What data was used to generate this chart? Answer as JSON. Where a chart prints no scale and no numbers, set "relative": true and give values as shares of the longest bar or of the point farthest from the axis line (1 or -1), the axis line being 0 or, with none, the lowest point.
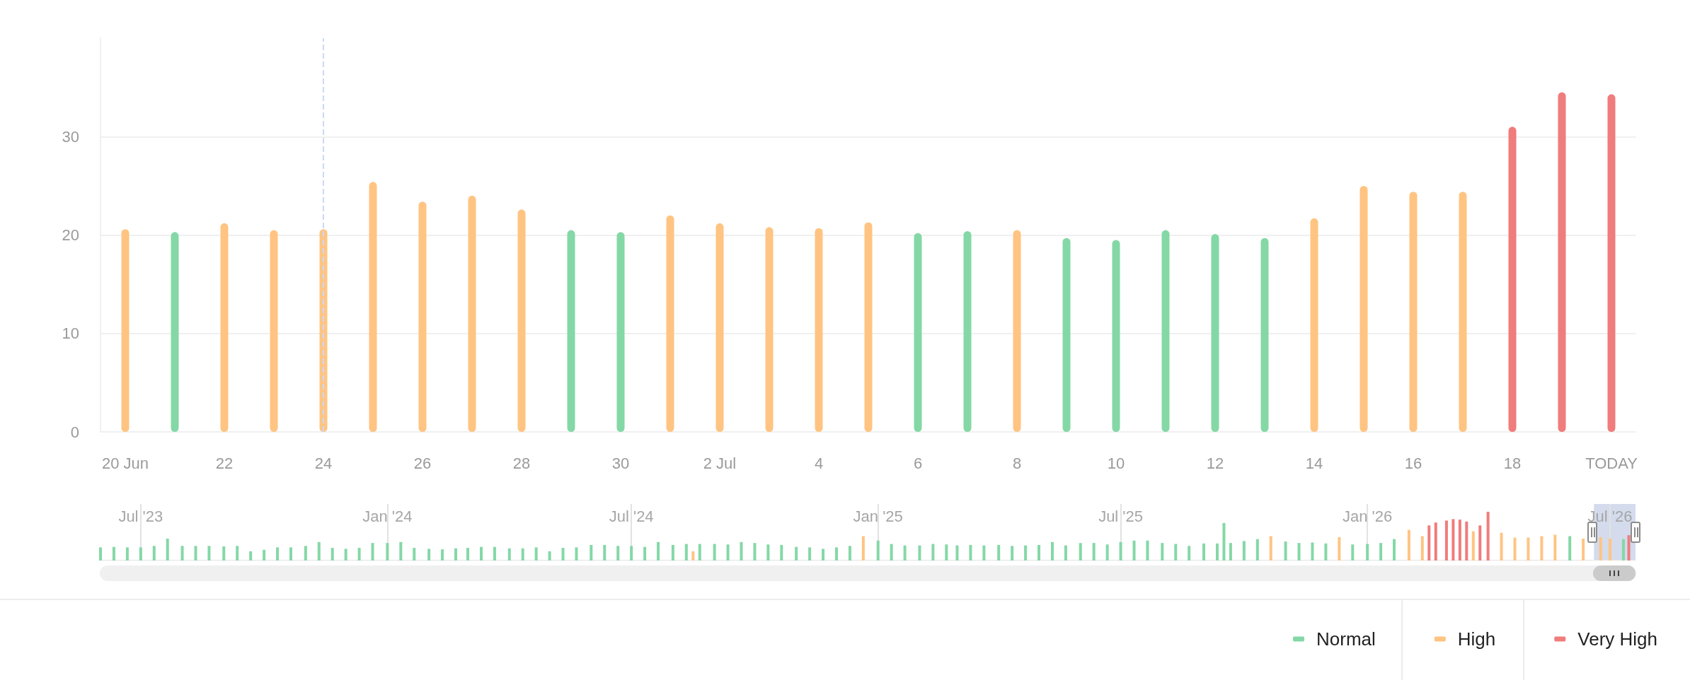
{
  "chart_data": [
    {
      "type": "bar",
      "categories": [
        "20 Jun",
        null,
        "22",
        null,
        "24",
        null,
        "26",
        null,
        "28",
        null,
        "30",
        null,
        "2 Jul",
        null,
        "4",
        null,
        "6",
        null,
        "8",
        null,
        "10",
        null,
        "12",
        null,
        "14",
        null,
        "16",
        null,
        "18",
        null,
        "TODAY"
      ],
      "series": [
        {
          "name": "Normal",
          "color": "#84d8a6",
          "values": [
            null,
            20.3,
            null,
            null,
            null,
            null,
            null,
            null,
            null,
            20.5,
            20.3,
            null,
            null,
            null,
            null,
            null,
            20.2,
            20.4,
            null,
            19.7,
            19.5,
            20.5,
            20.1,
            19.7,
            null,
            null,
            null,
            null,
            null,
            null,
            null
          ]
        },
        {
          "name": "High",
          "color": "#ffc482",
          "values": [
            20.6,
            null,
            21.2,
            20.5,
            20.6,
            25.4,
            23.4,
            24.0,
            22.6,
            null,
            null,
            22.0,
            21.2,
            20.8,
            20.7,
            21.3,
            null,
            null,
            20.5,
            null,
            null,
            null,
            null,
            null,
            21.7,
            25.0,
            24.4,
            24.4,
            null,
            null,
            null
          ]
        },
        {
          "name": "Very High",
          "color": "#f07c7c",
          "values": [
            null,
            null,
            null,
            null,
            null,
            null,
            null,
            null,
            null,
            null,
            null,
            null,
            null,
            null,
            null,
            null,
            null,
            null,
            null,
            null,
            null,
            null,
            null,
            null,
            null,
            null,
            null,
            null,
            31.0,
            34.5,
            34.3
          ]
        }
      ],
      "stacked": true,
      "ylim": [
        0,
        40
      ],
      "yticks": [
        0,
        10,
        20,
        30
      ],
      "grid": "y",
      "legend": "bottom right",
      "ref_lines": [
        {
          "axis": "x",
          "value": "24",
          "color": "#c6dafb",
          "line_style": "dashed"
        }
      ]
    },
    {
      "type": "bar",
      "relative": true,
      "tick_labels": "x",
      "grid": "x",
      "xlim": [
        "2023-06-01",
        "2026-07-20"
      ],
      "xticks": [
        {
          "value": "2023-07-01",
          "label": "Jul '23"
        },
        {
          "value": "2024-01-01",
          "label": "Jan '24"
        },
        {
          "value": "2024-07-01",
          "label": "Jul '24"
        },
        {
          "value": "2025-01-01",
          "label": "Jan '25"
        },
        {
          "value": "2025-07-01",
          "label": "Jul '25"
        },
        {
          "value": "2026-01-01",
          "label": "Jan '26"
        },
        {
          "value": "2026-07-01",
          "label": "Jul '26"
        }
      ],
      "bands": [
        {
          "axis": "x",
          "from": "2026-06-19",
          "to": "2026-07-20",
          "color": "#d3dbec"
        }
      ],
      "series": [
        {
          "color": "#84d8a6",
          "x": [
            "2023-06-01",
            "2023-06-11",
            "2023-06-21",
            "2023-07-01",
            "2023-07-11",
            "2023-07-21",
            "2023-08-01",
            "2023-08-11",
            "2023-08-21",
            "2023-09-01",
            "2023-09-11",
            "2023-09-21",
            "2023-10-01",
            "2023-10-11",
            "2023-10-21",
            "2023-11-01",
            "2023-11-11",
            "2023-11-21",
            "2023-12-01",
            "2023-12-11",
            "2023-12-21",
            "2024-01-01",
            "2024-01-11",
            "2024-01-21",
            "2024-02-01",
            "2024-02-11",
            "2024-02-21",
            "2024-03-01",
            "2024-03-11",
            "2024-03-21",
            "2024-04-01",
            "2024-04-11",
            "2024-04-21",
            "2024-05-01",
            "2024-05-11",
            "2024-05-21",
            "2024-06-01",
            "2024-06-11",
            "2024-06-21",
            "2024-07-01",
            "2024-07-11",
            "2024-07-21",
            "2024-08-01",
            "2024-08-11",
            "2024-08-21",
            "2024-09-01",
            "2024-09-11",
            "2024-09-21",
            "2024-10-01",
            "2024-10-11",
            "2024-10-21",
            "2024-11-01",
            "2024-11-11",
            "2024-11-21",
            "2024-12-01",
            "2024-12-11",
            "2025-01-01",
            "2025-01-11",
            "2025-01-21",
            "2025-02-01",
            "2025-02-11",
            "2025-02-21",
            "2025-03-01",
            "2025-03-11",
            "2025-03-21",
            "2025-04-01",
            "2025-04-11",
            "2025-04-21",
            "2025-05-01",
            "2025-05-11",
            "2025-05-21",
            "2025-06-01",
            "2025-06-11",
            "2025-06-21",
            "2025-07-01",
            "2025-07-11",
            "2025-07-21",
            "2025-08-01",
            "2025-08-11",
            "2025-08-21",
            "2025-09-01",
            "2025-09-11",
            "2025-09-16",
            "2025-09-21",
            "2025-10-01",
            "2025-10-11",
            "2025-11-01",
            "2025-11-11",
            "2025-11-21",
            "2025-12-01",
            "2025-12-21",
            "2026-01-01",
            "2026-01-11",
            "2026-01-21",
            "2026-06-01",
            "2026-07-11"
          ],
          "values": [
            0.27,
            0.28,
            0.27,
            0.27,
            0.3,
            0.45,
            0.3,
            0.3,
            0.3,
            0.29,
            0.3,
            0.19,
            0.22,
            0.27,
            0.27,
            0.3,
            0.38,
            0.26,
            0.24,
            0.26,
            0.36,
            0.36,
            0.38,
            0.26,
            0.24,
            0.23,
            0.25,
            0.26,
            0.28,
            0.28,
            0.25,
            0.25,
            0.27,
            0.19,
            0.26,
            0.27,
            0.32,
            0.32,
            0.3,
            0.3,
            0.28,
            0.38,
            0.32,
            0.34,
            0.34,
            0.34,
            0.33,
            0.38,
            0.36,
            0.33,
            0.32,
            0.28,
            0.27,
            0.24,
            0.27,
            0.3,
            0.41,
            0.34,
            0.31,
            0.31,
            0.34,
            0.33,
            0.31,
            0.32,
            0.31,
            0.32,
            0.3,
            0.31,
            0.32,
            0.38,
            0.31,
            0.36,
            0.36,
            0.33,
            0.38,
            0.41,
            0.41,
            0.36,
            0.34,
            0.3,
            0.35,
            0.35,
            0.77,
            0.36,
            0.4,
            0.44,
            0.39,
            0.36,
            0.37,
            0.35,
            0.33,
            0.34,
            0.36,
            0.44,
            0.5,
            0.44
          ]
        },
        {
          "color": "#ffc482",
          "x": [
            "2024-08-16",
            "2024-12-21",
            "2025-10-21",
            "2025-12-11",
            "2026-02-01",
            "2026-02-11",
            "2026-03-21",
            "2026-04-11",
            "2026-04-21",
            "2026-05-01",
            "2026-05-11",
            "2026-05-21",
            "2026-06-11",
            "2026-06-24",
            "2026-07-01"
          ],
          "values": [
            0.19,
            0.5,
            0.5,
            0.48,
            0.63,
            0.5,
            0.6,
            0.57,
            0.47,
            0.47,
            0.5,
            0.53,
            0.45,
            0.48,
            0.45
          ]
        },
        {
          "color": "#f07c7c",
          "x": [
            "2026-02-16",
            "2026-02-21",
            "2026-03-01",
            "2026-03-06",
            "2026-03-11",
            "2026-03-16",
            "2026-03-26",
            "2026-04-01",
            "2026-07-15"
          ],
          "values": [
            0.72,
            0.78,
            0.82,
            0.85,
            0.84,
            0.8,
            0.72,
            1,
            0.52
          ]
        }
      ]
    }
  ]
}
